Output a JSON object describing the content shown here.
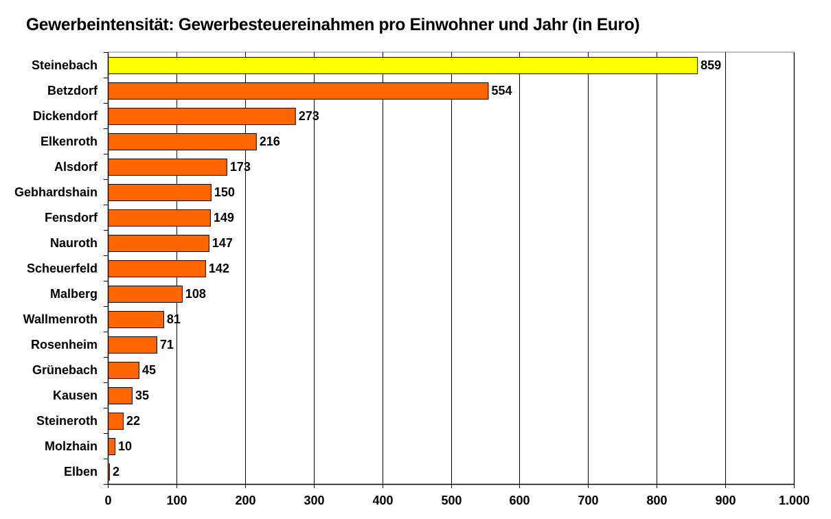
{
  "chart_data": {
    "type": "bar",
    "orientation": "horizontal",
    "title": "Gewerbeintensität: Gewerbesteuereinahmen pro Einwohner und Jahr (in Euro)",
    "xlabel": "",
    "ylabel": "",
    "categories": [
      "Steinebach",
      "Betzdorf",
      "Dickendorf",
      "Elkenroth",
      "Alsdorf",
      "Gebhardshain",
      "Fensdorf",
      "Nauroth",
      "Scheuerfeld",
      "Malberg",
      "Wallmenroth",
      "Rosenheim",
      "Grünebach",
      "Kausen",
      "Steineroth",
      "Molzhain",
      "Elben"
    ],
    "values": [
      859,
      554,
      273,
      216,
      173,
      150,
      149,
      147,
      142,
      108,
      81,
      71,
      45,
      35,
      22,
      10,
      2
    ],
    "data_labels": [
      "859",
      "554",
      "273",
      "216",
      "173",
      "150",
      "149",
      "147",
      "142",
      "108",
      "81",
      "71",
      "45",
      "35",
      "22",
      "10",
      "2"
    ],
    "xlim": [
      0,
      1000
    ],
    "x_ticks": [
      0,
      100,
      200,
      300,
      400,
      500,
      600,
      700,
      800,
      900,
      1000
    ],
    "x_tick_labels": [
      "0",
      "100",
      "200",
      "300",
      "400",
      "500",
      "600",
      "700",
      "800",
      "900",
      "1.000"
    ],
    "grid": "vertical",
    "legend": "none",
    "colors": {
      "highlight": "#ffff00",
      "bar": "#ff6600",
      "bar_border": "#000000",
      "grid": "#000000",
      "background": "#ffffff"
    },
    "highlight_category": "Steinebach"
  }
}
